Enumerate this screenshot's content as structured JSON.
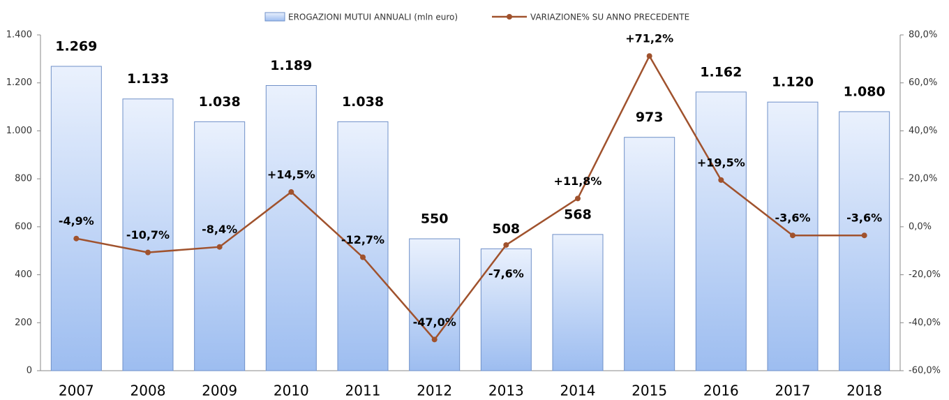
{
  "chart_data": {
    "type": "bar",
    "categories": [
      "2007",
      "2008",
      "2009",
      "2010",
      "2011",
      "2012",
      "2013",
      "2014",
      "2015",
      "2016",
      "2017",
      "2018"
    ],
    "series": [
      {
        "name": "EROGAZIONI MUTUI ANNUALI (mln euro)",
        "type": "bar",
        "color": "#9dbdf0",
        "values": [
          1269,
          1133,
          1038,
          1189,
          1038,
          550,
          508,
          568,
          973,
          1162,
          1120,
          1080
        ],
        "value_labels": [
          "1.269",
          "1.133",
          "1.038",
          "1.189",
          "1.038",
          "550",
          "508",
          "568",
          "973",
          "1.162",
          "1.120",
          "1.080"
        ]
      },
      {
        "name": "VARIAZIONE% SU ANNO PRECEDENTE",
        "type": "line",
        "axis": "y2",
        "color": "#a0522d",
        "values": [
          -4.9,
          -10.7,
          -8.4,
          14.5,
          -12.7,
          -47.0,
          -7.6,
          11.8,
          71.2,
          19.5,
          -3.6,
          -3.6
        ],
        "value_labels": [
          "-4,9%",
          "-10,7%",
          "-8,4%",
          "+14,5%",
          "-12,7%",
          "-47,0%",
          "-7,6%",
          "+11,8%",
          "+71,2%",
          "+19,5%",
          "-3,6%",
          "-3,6%"
        ]
      }
    ],
    "ylim": [
      0,
      1400
    ],
    "yticks": [
      0,
      200,
      400,
      600,
      800,
      {
        "value": 1000,
        "label": "1.000"
      },
      {
        "value": 1200,
        "label": "1.200"
      },
      {
        "value": 1400,
        "label": "1.400"
      }
    ],
    "y2lim": [
      -60,
      80
    ],
    "y2ticks": [
      {
        "value": -60,
        "label": "-60,0%"
      },
      {
        "value": -40,
        "label": "-40,0%"
      },
      {
        "value": -20,
        "label": "-20,0%"
      },
      {
        "value": 0,
        "label": "0,0%"
      },
      {
        "value": 20,
        "label": "20,0%"
      },
      {
        "value": 40,
        "label": "40,0%"
      },
      {
        "value": 60,
        "label": "60,0%"
      },
      {
        "value": 80,
        "label": "80,0%"
      }
    ],
    "legend": "top"
  }
}
